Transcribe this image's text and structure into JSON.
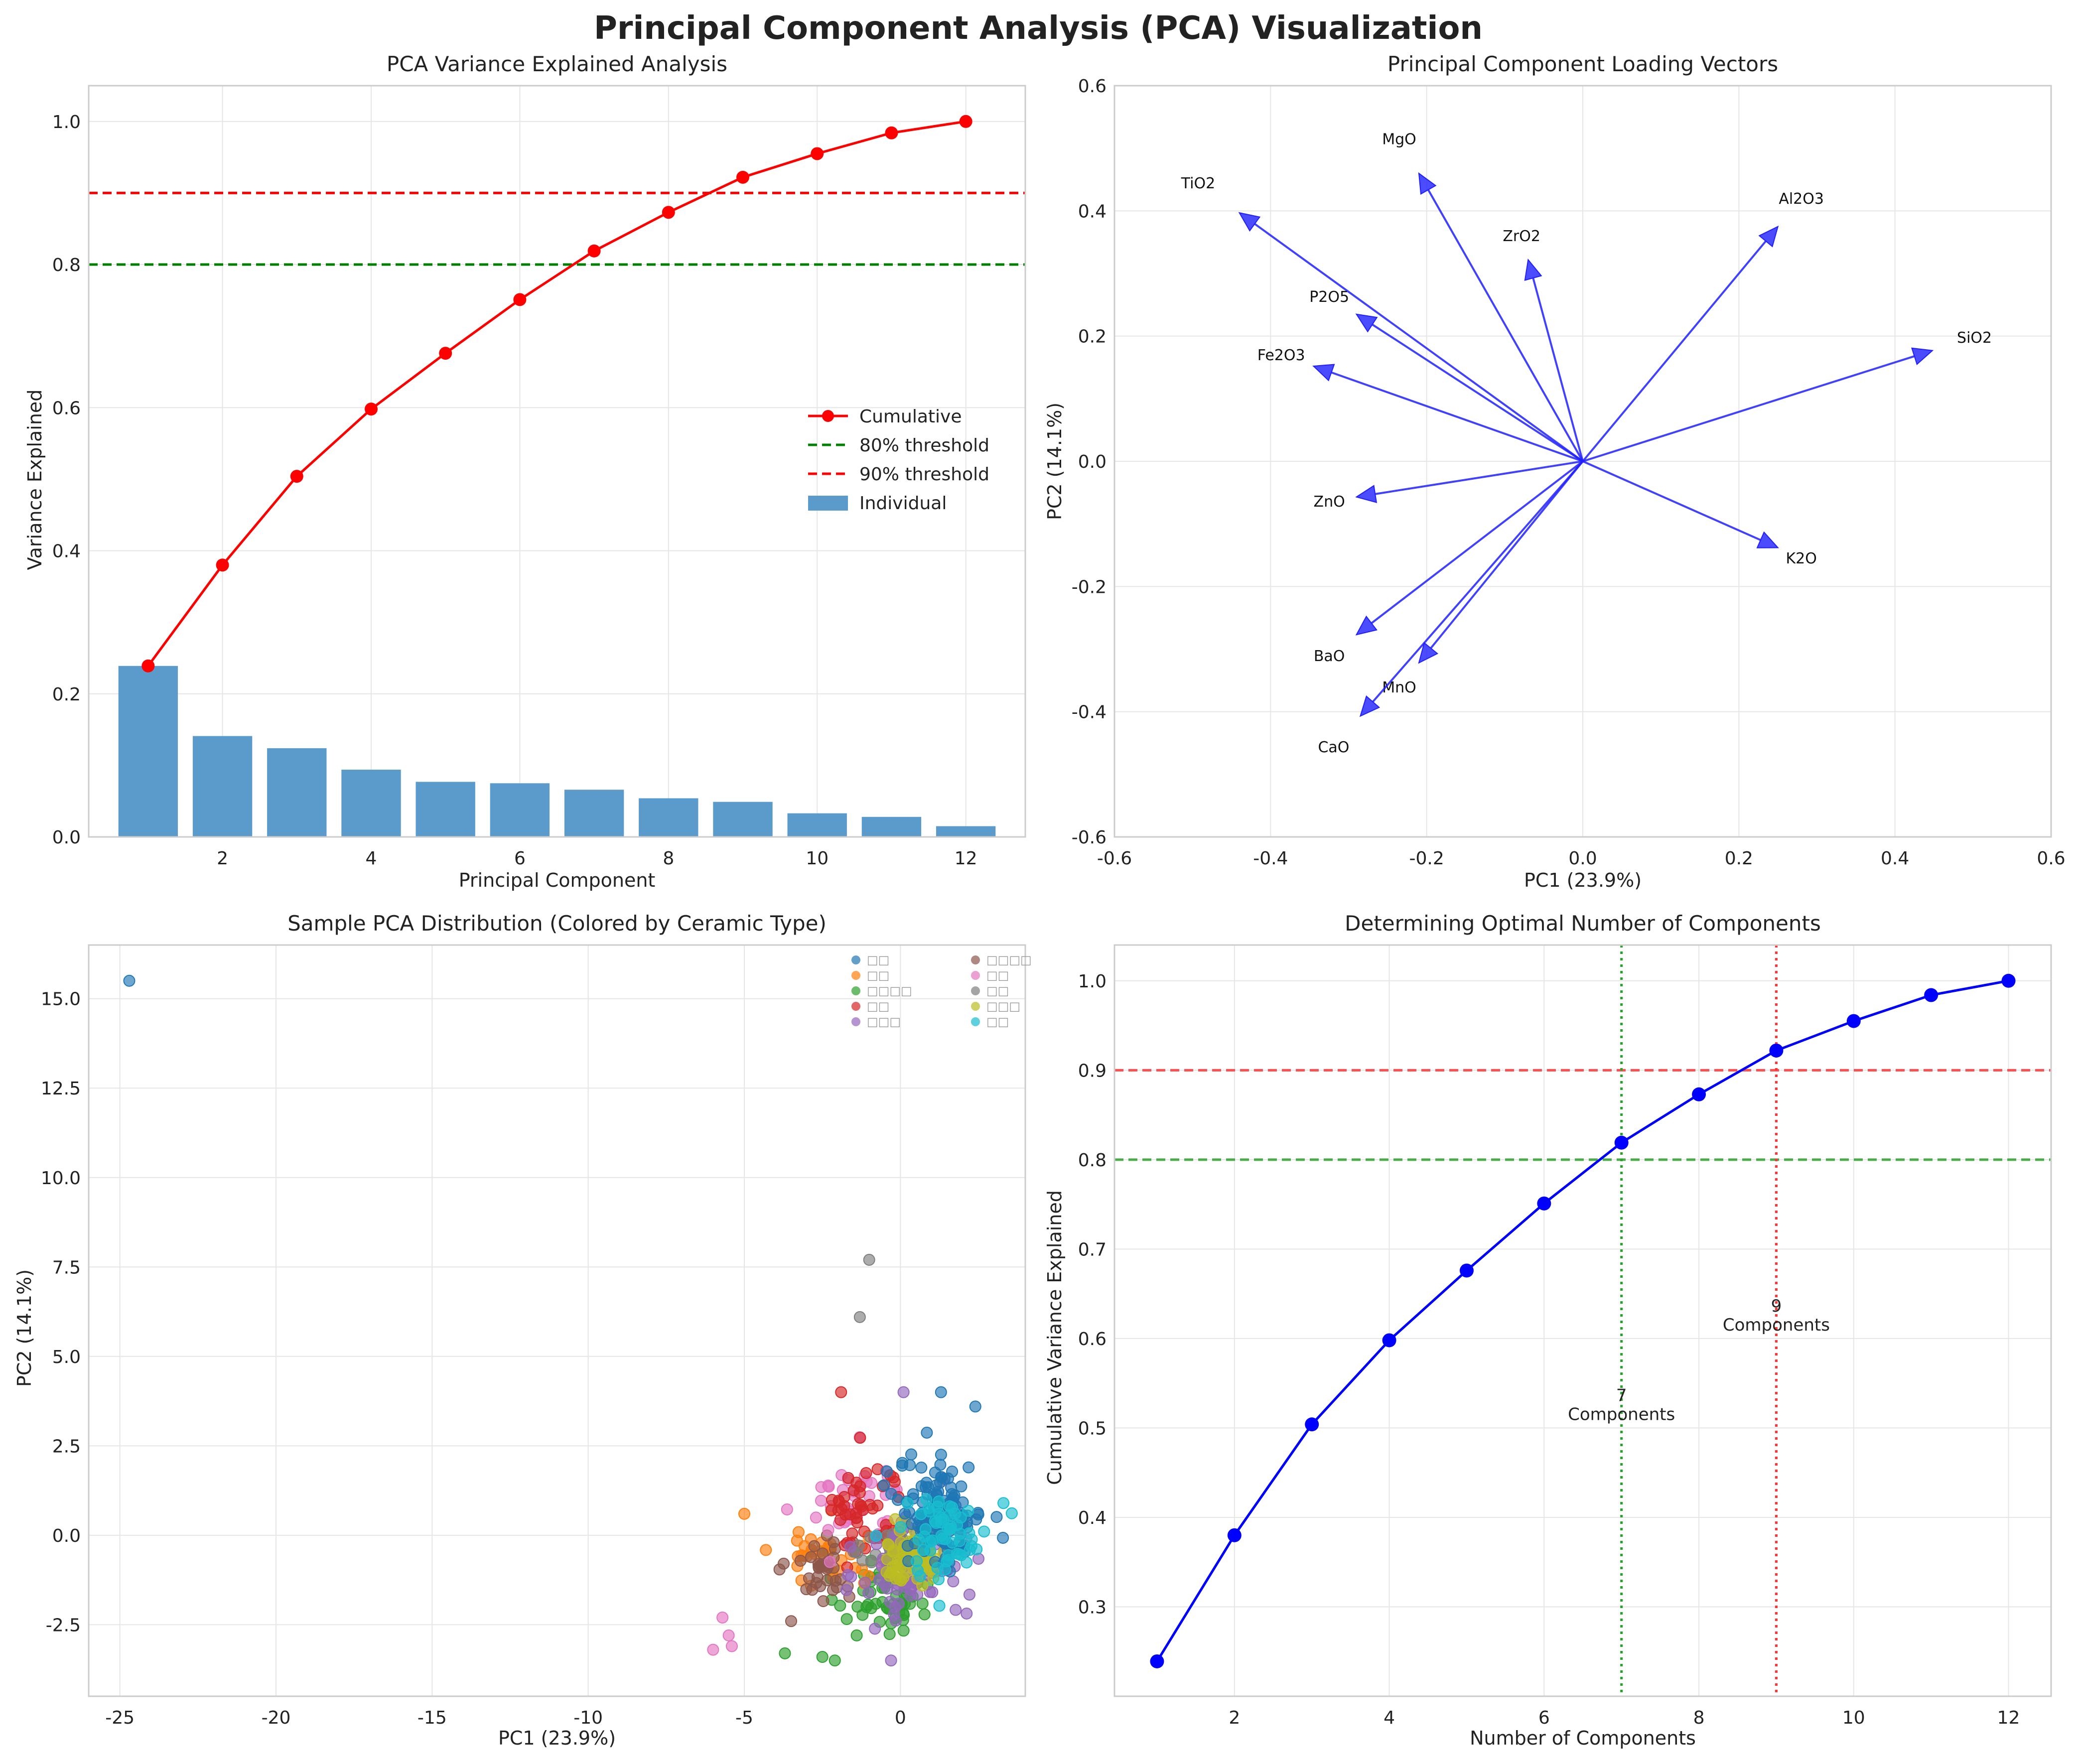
{
  "figure": {
    "title": "Principal Component Analysis (PCA) Visualization"
  },
  "colors": {
    "bar": "#5a9bcc",
    "cumulative": "#ff0000",
    "threshold80": "#008000",
    "threshold90": "#ff0000",
    "arrow": "#1f1fff",
    "optimal_line": "#0000ff",
    "grid": "#e6e6e6",
    "spine": "#cccccc"
  },
  "chart_data": [
    {
      "id": "variance",
      "type": "bar",
      "title": "PCA Variance Explained Analysis",
      "xlabel": "Principal Component",
      "ylabel": "Variance Explained",
      "xlim": [
        0.2,
        12.8
      ],
      "ylim": [
        0,
        1.05
      ],
      "x": [
        1,
        2,
        3,
        4,
        5,
        6,
        7,
        8,
        9,
        10,
        11,
        12
      ],
      "individual": [
        0.239,
        0.141,
        0.124,
        0.094,
        0.077,
        0.075,
        0.066,
        0.054,
        0.049,
        0.033,
        0.028,
        0.015
      ],
      "cumulative": [
        0.239,
        0.38,
        0.504,
        0.598,
        0.676,
        0.751,
        0.819,
        0.873,
        0.922,
        0.955,
        0.984,
        1.0
      ],
      "thresholds": [
        0.8,
        0.9
      ],
      "xticks": [
        2,
        4,
        6,
        8,
        10,
        12
      ],
      "yticks": [
        0.0,
        0.2,
        0.4,
        0.6,
        0.8,
        1.0
      ],
      "legend": [
        "Cumulative",
        "80% threshold",
        "90% threshold",
        "Individual"
      ]
    },
    {
      "id": "loadings",
      "type": "scatter",
      "title": "Principal Component Loading Vectors",
      "xlabel": "PC1 (23.9%)",
      "ylabel": "PC2 (14.1%)",
      "xlim": [
        -0.6,
        0.6
      ],
      "ylim": [
        -0.6,
        0.6
      ],
      "xticks": [
        -0.6,
        -0.4,
        -0.2,
        0.0,
        0.2,
        0.4,
        0.6
      ],
      "yticks": [
        -0.6,
        -0.4,
        -0.2,
        0.0,
        0.2,
        0.4,
        0.6
      ],
      "vectors": [
        {
          "name": "SiO2",
          "x": 0.448,
          "y": 0.177
        },
        {
          "name": "Al2O3",
          "x": 0.25,
          "y": 0.375
        },
        {
          "name": "K2O",
          "x": 0.25,
          "y": -0.138
        },
        {
          "name": "MgO",
          "x": -0.21,
          "y": 0.46
        },
        {
          "name": "TiO2",
          "x": -0.44,
          "y": 0.397
        },
        {
          "name": "ZrO2",
          "x": -0.07,
          "y": 0.322
        },
        {
          "name": "P2O5",
          "x": -0.29,
          "y": 0.235
        },
        {
          "name": "Fe2O3",
          "x": -0.345,
          "y": 0.152
        },
        {
          "name": "ZnO",
          "x": -0.29,
          "y": -0.057
        },
        {
          "name": "BaO",
          "x": -0.29,
          "y": -0.277
        },
        {
          "name": "MnO",
          "x": -0.21,
          "y": -0.322
        },
        {
          "name": "CaO",
          "x": -0.285,
          "y": -0.407
        }
      ]
    },
    {
      "id": "scores",
      "type": "scatter",
      "title": "Sample PCA Distribution (Colored by Ceramic Type)",
      "xlabel": "PC1 (23.9%)",
      "ylabel": "PC2 (14.1%)",
      "xlim": [
        -26.0,
        4.0
      ],
      "ylim": [
        -4.5,
        16.5
      ],
      "xticks": [
        -25,
        -20,
        -15,
        -10,
        -5,
        0
      ],
      "yticks": [
        -2.5,
        0.0,
        2.5,
        5.0,
        7.5,
        10.0,
        12.5,
        15.0
      ],
      "legend_labels": [
        "□□",
        "□□",
        "□□□□",
        "□□",
        "□□□",
        "□□□□",
        "□□",
        "□□",
        "□□□",
        "□□"
      ],
      "series_colors": [
        "#1f77b4",
        "#ff7f0e",
        "#2ca02c",
        "#d62728",
        "#9467bd",
        "#8c564b",
        "#e377c2",
        "#7f7f7f",
        "#bcbd22",
        "#17becf"
      ],
      "clusters": [
        {
          "series": 0,
          "cx": 1.3,
          "cy": 0.6,
          "sx": 0.9,
          "sy": 1.0,
          "n": 130
        },
        {
          "series": 1,
          "cx": -2.2,
          "cy": -0.6,
          "sx": 1.2,
          "sy": 0.7,
          "n": 40
        },
        {
          "series": 2,
          "cx": -0.6,
          "cy": -1.6,
          "sx": 1.0,
          "sy": 0.8,
          "n": 55
        },
        {
          "series": 3,
          "cx": -1.2,
          "cy": 0.7,
          "sx": 0.9,
          "sy": 1.0,
          "n": 50
        },
        {
          "series": 4,
          "cx": 0.4,
          "cy": -0.9,
          "sx": 1.1,
          "sy": 1.0,
          "n": 85
        },
        {
          "series": 5,
          "cx": -2.6,
          "cy": -0.9,
          "sx": 0.7,
          "sy": 0.6,
          "n": 35
        },
        {
          "series": 6,
          "cx": -1.3,
          "cy": 1.0,
          "sx": 1.1,
          "sy": 0.9,
          "n": 40
        },
        {
          "series": 7,
          "cx": -0.2,
          "cy": -0.5,
          "sx": 0.7,
          "sy": 0.5,
          "n": 25
        },
        {
          "series": 8,
          "cx": 0.4,
          "cy": -0.6,
          "sx": 0.7,
          "sy": 0.5,
          "n": 70
        },
        {
          "series": 9,
          "cx": 1.4,
          "cy": 0.0,
          "sx": 1.0,
          "sy": 0.8,
          "n": 60
        }
      ],
      "fixed_points": [
        {
          "series": 0,
          "x": -24.7,
          "y": 15.5
        },
        {
          "series": 7,
          "x": -1.0,
          "y": 7.7
        },
        {
          "series": 7,
          "x": -1.3,
          "y": 6.1
        },
        {
          "series": 6,
          "x": -6.0,
          "y": -3.2
        },
        {
          "series": 6,
          "x": -5.7,
          "y": -2.3
        },
        {
          "series": 6,
          "x": -5.4,
          "y": -3.1
        },
        {
          "series": 6,
          "x": -5.5,
          "y": -2.8
        },
        {
          "series": 2,
          "x": -3.7,
          "y": -3.3
        },
        {
          "series": 2,
          "x": -2.5,
          "y": -3.4
        },
        {
          "series": 2,
          "x": -1.4,
          "y": -2.8
        },
        {
          "series": 2,
          "x": -2.1,
          "y": -3.5
        },
        {
          "series": 3,
          "x": -1.9,
          "y": 4.0
        },
        {
          "series": 4,
          "x": 0.1,
          "y": 4.0
        },
        {
          "series": 4,
          "x": -0.3,
          "y": -3.5
        },
        {
          "series": 0,
          "x": 2.4,
          "y": 3.6
        },
        {
          "series": 0,
          "x": 1.3,
          "y": 4.0
        },
        {
          "series": 9,
          "x": 3.3,
          "y": 0.9
        },
        {
          "series": 1,
          "x": -5.0,
          "y": 0.6
        },
        {
          "series": 5,
          "x": -3.5,
          "y": -2.4
        }
      ]
    },
    {
      "id": "optimal",
      "type": "line",
      "title": "Determining Optimal Number of Components",
      "xlabel": "Number of Components",
      "ylabel": "Cumulative Variance Explained",
      "xlim": [
        0.45,
        12.55
      ],
      "ylim": [
        0.2,
        1.04
      ],
      "x": [
        1,
        2,
        3,
        4,
        5,
        6,
        7,
        8,
        9,
        10,
        11,
        12
      ],
      "values": [
        0.239,
        0.38,
        0.504,
        0.598,
        0.676,
        0.751,
        0.819,
        0.873,
        0.922,
        0.955,
        0.984,
        1.0
      ],
      "xticks": [
        2,
        4,
        6,
        8,
        10,
        12
      ],
      "yticks": [
        0.3,
        0.4,
        0.5,
        0.6,
        0.7,
        0.8,
        0.9,
        1.0
      ],
      "hlines": [
        0.8,
        0.9
      ],
      "vlines": [
        {
          "x": 7,
          "label_num": "7",
          "label_text": "Components",
          "label_y": 0.51,
          "color": "#2ca02c"
        },
        {
          "x": 9,
          "label_num": "9",
          "label_text": "Components",
          "label_y": 0.61,
          "color": "#ff3333"
        }
      ]
    }
  ]
}
